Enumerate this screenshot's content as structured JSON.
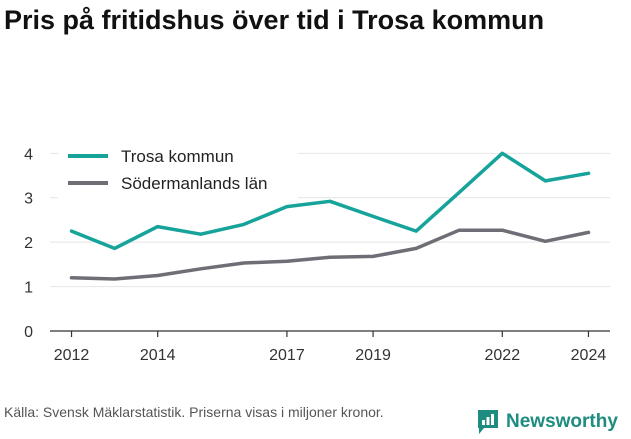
{
  "title": "Pris på fritidshus över tid i Trosa kommun",
  "source": "Källa: Svensk Mäklarstatistik. Priserna visas i miljoner kronor.",
  "brand": {
    "name": "Newsworthy",
    "icon": "newsworthy-logo-icon",
    "color": "#1e8c80"
  },
  "chart_data": {
    "type": "line",
    "x": [
      2012,
      2013,
      2014,
      2015,
      2016,
      2017,
      2018,
      2019,
      2020,
      2021,
      2022,
      2023,
      2024
    ],
    "x_ticks": [
      "2012",
      "2014",
      "2017",
      "2019",
      "2022",
      "2024"
    ],
    "y_ticks": [
      "0",
      "1",
      "2",
      "3",
      "4"
    ],
    "ylim": [
      0,
      4.3
    ],
    "xlim": [
      2011.5,
      2024.5
    ],
    "grid": true,
    "legend_position": "top-left",
    "series": [
      {
        "name": "Trosa kommun",
        "color": "#16a39a",
        "values": [
          2.25,
          1.86,
          2.35,
          2.18,
          2.4,
          2.8,
          2.92,
          2.58,
          2.25,
          3.12,
          4.0,
          3.38,
          3.55
        ]
      },
      {
        "name": "Södermanlands län",
        "color": "#6e6e76",
        "values": [
          1.2,
          1.17,
          1.25,
          1.4,
          1.53,
          1.57,
          1.66,
          1.68,
          1.86,
          2.27,
          2.27,
          2.02,
          2.22
        ]
      }
    ]
  }
}
